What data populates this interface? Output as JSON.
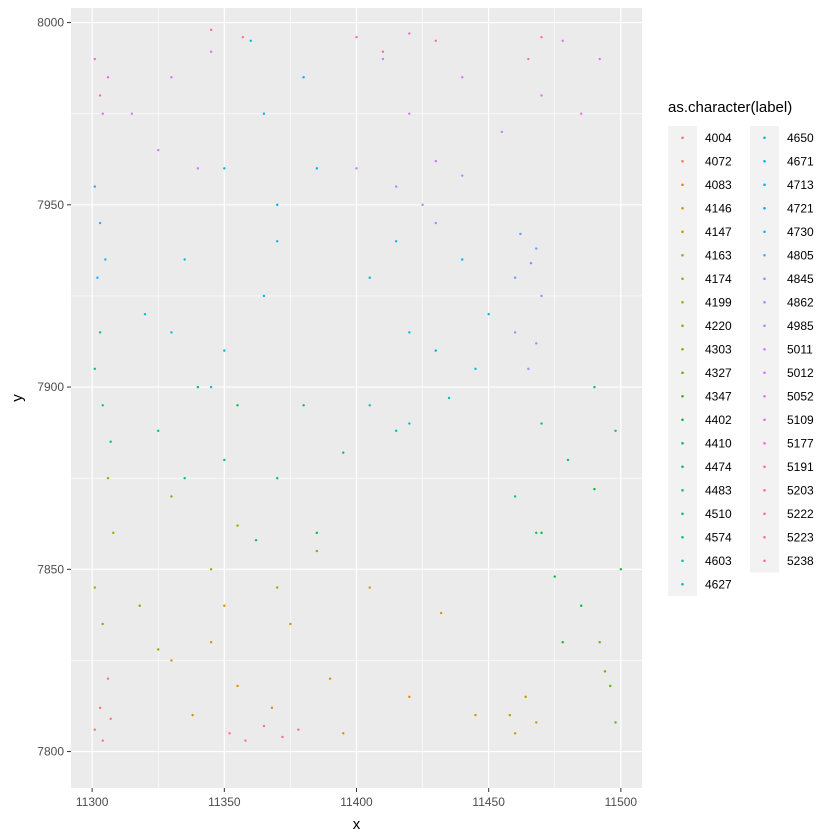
{
  "chart_data": {
    "type": "scatter",
    "xlabel": "x",
    "ylabel": "y",
    "xlim": [
      11292,
      11508
    ],
    "ylim": [
      7790,
      8004
    ],
    "x_ticks": [
      11300,
      11350,
      11400,
      11450,
      11500
    ],
    "y_ticks": [
      7800,
      7850,
      7900,
      7950,
      8000
    ],
    "grid": true,
    "legend": {
      "title": "as.character(label)",
      "placement": "right",
      "labels": [
        "4004",
        "4072",
        "4083",
        "4146",
        "4147",
        "4163",
        "4174",
        "4199",
        "4220",
        "4303",
        "4327",
        "4347",
        "4402",
        "4410",
        "4474",
        "4483",
        "4510",
        "4574",
        "4603",
        "4627",
        "4650",
        "4671",
        "4713",
        "4721",
        "4730",
        "4805",
        "4845",
        "4862",
        "4985",
        "5011",
        "5012",
        "5052",
        "5109",
        "5177",
        "5191",
        "5203",
        "5222",
        "5223",
        "5238"
      ],
      "colors": [
        "#F8766D",
        "#F37B59",
        "#E38900",
        "#D69100",
        "#C99800",
        "#BB9D00",
        "#B2A100",
        "#A3A500",
        "#8EAB00",
        "#7CAE00",
        "#64B200",
        "#39B600",
        "#00BA38",
        "#00BC59",
        "#00BE6C",
        "#00BF7D",
        "#00C08B",
        "#00C19A",
        "#00C0AF",
        "#00BFC4",
        "#00BCD6",
        "#00B4EF",
        "#00B0F6",
        "#00A9FF",
        "#35A2FF",
        "#619CFF",
        "#8B93FF",
        "#9590FF",
        "#AD88FF",
        "#C77CFF",
        "#D277FF",
        "#E76BF3",
        "#F066EA",
        "#F962DD",
        "#FF62BC",
        "#FF65AE",
        "#FF6A98",
        "#FE6E8A",
        "#FF6C91"
      ]
    },
    "clusters": [
      {
        "label": "4004",
        "points": [
          [
            11301,
            7806
          ],
          [
            11303,
            7812
          ],
          [
            11306,
            7820
          ],
          [
            11304,
            7803
          ],
          [
            11307,
            7809
          ]
        ]
      },
      {
        "label": "5223",
        "points": [
          [
            11352,
            7805
          ],
          [
            11358,
            7803
          ],
          [
            11365,
            7807
          ],
          [
            11372,
            7804
          ],
          [
            11378,
            7806
          ]
        ]
      },
      {
        "label": "4083",
        "points": [
          [
            11330,
            7825
          ],
          [
            11338,
            7810
          ],
          [
            11345,
            7830
          ],
          [
            11355,
            7818
          ],
          [
            11368,
            7812
          ],
          [
            11350,
            7840
          ]
        ]
      },
      {
        "label": "4146",
        "points": [
          [
            11375,
            7835
          ],
          [
            11390,
            7820
          ],
          [
            11405,
            7845
          ],
          [
            11420,
            7815
          ],
          [
            11432,
            7838
          ],
          [
            11445,
            7810
          ],
          [
            11395,
            7805
          ]
        ]
      },
      {
        "label": "4163",
        "points": [
          [
            11460,
            7805
          ],
          [
            11464,
            7815
          ],
          [
            11458,
            7810
          ],
          [
            11468,
            7808
          ]
        ]
      },
      {
        "label": "4199",
        "points": [
          [
            11301,
            7845
          ],
          [
            11306,
            7875
          ],
          [
            11304,
            7835
          ],
          [
            11308,
            7860
          ]
        ]
      },
      {
        "label": "4220",
        "points": [
          [
            11318,
            7840
          ],
          [
            11330,
            7870
          ],
          [
            11345,
            7850
          ],
          [
            11355,
            7862
          ],
          [
            11370,
            7845
          ],
          [
            11325,
            7828
          ],
          [
            11385,
            7855
          ]
        ]
      },
      {
        "label": "4327",
        "points": [
          [
            11492,
            7830
          ],
          [
            11496,
            7818
          ],
          [
            11498,
            7808
          ],
          [
            11494,
            7822
          ]
        ]
      },
      {
        "label": "4402",
        "points": [
          [
            11470,
            7860
          ],
          [
            11485,
            7840
          ],
          [
            11500,
            7850
          ],
          [
            11478,
            7830
          ],
          [
            11490,
            7872
          ],
          [
            11475,
            7848
          ]
        ]
      },
      {
        "label": "4410",
        "points": [
          [
            11355,
            7895
          ],
          [
            11370,
            7875
          ],
          [
            11385,
            7860
          ],
          [
            11395,
            7882
          ],
          [
            11362,
            7858
          ],
          [
            11380,
            7895
          ]
        ]
      },
      {
        "label": "4474",
        "points": [
          [
            11325,
            7888
          ],
          [
            11340,
            7900
          ],
          [
            11350,
            7880
          ],
          [
            11335,
            7875
          ]
        ]
      },
      {
        "label": "4483",
        "points": [
          [
            11460,
            7870
          ],
          [
            11470,
            7890
          ],
          [
            11480,
            7880
          ],
          [
            11468,
            7860
          ],
          [
            11490,
            7900
          ],
          [
            11498,
            7888
          ]
        ]
      },
      {
        "label": "4510",
        "points": [
          [
            11301,
            7905
          ],
          [
            11304,
            7895
          ],
          [
            11307,
            7885
          ],
          [
            11303,
            7915
          ]
        ]
      },
      {
        "label": "4603",
        "points": [
          [
            11405,
            7895
          ],
          [
            11420,
            7890
          ],
          [
            11435,
            7897
          ],
          [
            11415,
            7888
          ]
        ]
      },
      {
        "label": "4650",
        "points": [
          [
            11320,
            7920
          ],
          [
            11335,
            7935
          ],
          [
            11350,
            7910
          ],
          [
            11365,
            7925
          ],
          [
            11345,
            7900
          ],
          [
            11330,
            7915
          ],
          [
            11370,
            7940
          ]
        ]
      },
      {
        "label": "4671",
        "points": [
          [
            11405,
            7930
          ],
          [
            11420,
            7915
          ],
          [
            11440,
            7935
          ],
          [
            11430,
            7910
          ],
          [
            11450,
            7920
          ],
          [
            11415,
            7940
          ],
          [
            11445,
            7905
          ]
        ]
      },
      {
        "label": "4713",
        "points": [
          [
            11350,
            7960
          ],
          [
            11365,
            7975
          ],
          [
            11380,
            7985
          ],
          [
            11370,
            7950
          ],
          [
            11385,
            7960
          ],
          [
            11360,
            7995
          ]
        ]
      },
      {
        "label": "4730",
        "points": [
          [
            11301,
            7955
          ],
          [
            11303,
            7945
          ],
          [
            11305,
            7935
          ],
          [
            11302,
            7930
          ]
        ]
      },
      {
        "label": "4805",
        "points": [
          [
            11462,
            7942
          ],
          [
            11466,
            7934
          ],
          [
            11460,
            7930
          ],
          [
            11468,
            7938
          ]
        ]
      },
      {
        "label": "4845",
        "points": [
          [
            11460,
            7915
          ],
          [
            11465,
            7905
          ],
          [
            11470,
            7925
          ],
          [
            11468,
            7912
          ]
        ]
      },
      {
        "label": "4862",
        "points": [
          [
            11415,
            7955
          ],
          [
            11430,
            7945
          ],
          [
            11440,
            7958
          ],
          [
            11425,
            7950
          ]
        ]
      },
      {
        "label": "5012",
        "points": [
          [
            11315,
            7975
          ],
          [
            11330,
            7985
          ],
          [
            11340,
            7960
          ],
          [
            11325,
            7965
          ],
          [
            11345,
            7992
          ]
        ]
      },
      {
        "label": "5011",
        "points": [
          [
            11400,
            7960
          ],
          [
            11420,
            7975
          ],
          [
            11440,
            7985
          ],
          [
            11455,
            7970
          ],
          [
            11410,
            7990
          ],
          [
            11430,
            7962
          ]
        ]
      },
      {
        "label": "5052",
        "points": [
          [
            11470,
            7980
          ],
          [
            11485,
            7975
          ],
          [
            11492,
            7990
          ],
          [
            11478,
            7995
          ]
        ]
      },
      {
        "label": "5177",
        "points": [
          [
            11301,
            7990
          ],
          [
            11304,
            7975
          ],
          [
            11306,
            7985
          ],
          [
            11303,
            7980
          ]
        ]
      },
      {
        "label": "5191",
        "points": [
          [
            11400,
            7996
          ],
          [
            11410,
            7992
          ],
          [
            11420,
            7997
          ],
          [
            11430,
            7995
          ]
        ]
      },
      {
        "label": "5238",
        "points": [
          [
            11345,
            7998
          ],
          [
            11357,
            7996
          ],
          [
            11465,
            7990
          ],
          [
            11470,
            7996
          ]
        ]
      }
    ]
  }
}
